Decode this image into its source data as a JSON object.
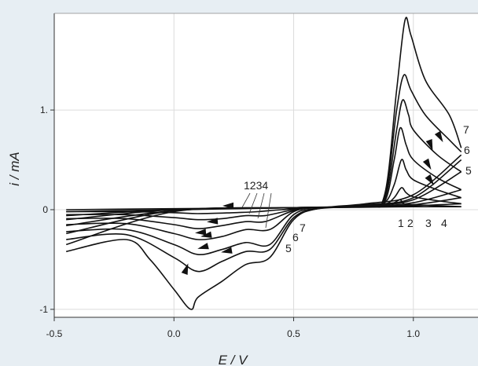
{
  "chart_data": {
    "type": "line",
    "title": "",
    "xlabel": "E / V",
    "ylabel": "i / mA",
    "xlim": [
      -0.5,
      1.27
    ],
    "ylim": [
      -1.08,
      1.97
    ],
    "grid": true,
    "x_ticks": [
      -0.5,
      0.0,
      0.5,
      1.0
    ],
    "x_tick_labels": [
      "-0.5",
      "0.0",
      "0.5",
      "1.0"
    ],
    "y_ticks": [
      -1,
      0,
      1
    ],
    "y_tick_labels": [
      "-1",
      "0",
      "1."
    ],
    "series": [
      {
        "name": "1",
        "anodic": [
          [
            -0.45,
            0.0
          ],
          [
            0.0,
            0.01
          ],
          [
            0.5,
            0.02
          ],
          [
            0.8,
            0.03
          ],
          [
            0.88,
            0.04
          ],
          [
            0.92,
            0.07
          ],
          [
            0.945,
            0.1
          ],
          [
            0.96,
            0.06
          ],
          [
            1.0,
            0.05
          ],
          [
            1.1,
            0.04
          ],
          [
            1.2,
            0.03
          ]
        ],
        "cathodic": [
          [
            1.2,
            0.03
          ],
          [
            1.0,
            0.03
          ],
          [
            0.8,
            0.025
          ],
          [
            0.6,
            0.02
          ],
          [
            0.45,
            0.0
          ],
          [
            0.35,
            -0.02
          ],
          [
            0.25,
            -0.03
          ],
          [
            0.1,
            -0.04
          ],
          [
            0.0,
            -0.03
          ],
          [
            -0.2,
            -0.02
          ],
          [
            -0.45,
            -0.02
          ]
        ]
      },
      {
        "name": "2",
        "anodic": [
          [
            -0.45,
            -0.02
          ],
          [
            0.0,
            0.0
          ],
          [
            0.5,
            0.02
          ],
          [
            0.8,
            0.03
          ],
          [
            0.88,
            0.05
          ],
          [
            0.92,
            0.12
          ],
          [
            0.95,
            0.22
          ],
          [
            0.97,
            0.17
          ],
          [
            1.0,
            0.13
          ],
          [
            1.1,
            0.09
          ],
          [
            1.2,
            0.06
          ]
        ],
        "cathodic": [
          [
            1.2,
            0.06
          ],
          [
            1.0,
            0.04
          ],
          [
            0.8,
            0.03
          ],
          [
            0.6,
            0.02
          ],
          [
            0.5,
            0.0
          ],
          [
            0.38,
            -0.06
          ],
          [
            0.3,
            -0.06
          ],
          [
            0.2,
            -0.09
          ],
          [
            0.1,
            -0.1
          ],
          [
            0.0,
            -0.08
          ],
          [
            -0.2,
            -0.05
          ],
          [
            -0.45,
            -0.05
          ]
        ]
      },
      {
        "name": "3",
        "anodic": [
          [
            -0.45,
            -0.06
          ],
          [
            0.0,
            0.0
          ],
          [
            0.5,
            0.02
          ],
          [
            0.8,
            0.03
          ],
          [
            0.88,
            0.07
          ],
          [
            0.92,
            0.25
          ],
          [
            0.95,
            0.5
          ],
          [
            0.97,
            0.4
          ],
          [
            1.0,
            0.3
          ],
          [
            1.1,
            0.2
          ],
          [
            1.2,
            0.12
          ]
        ],
        "cathodic": [
          [
            1.2,
            0.12
          ],
          [
            1.0,
            0.05
          ],
          [
            0.8,
            0.03
          ],
          [
            0.6,
            0.02
          ],
          [
            0.5,
            -0.01
          ],
          [
            0.38,
            -0.12
          ],
          [
            0.3,
            -0.12
          ],
          [
            0.2,
            -0.16
          ],
          [
            0.1,
            -0.19
          ],
          [
            0.0,
            -0.15
          ],
          [
            -0.2,
            -0.09
          ],
          [
            -0.45,
            -0.09
          ]
        ]
      },
      {
        "name": "4",
        "anodic": [
          [
            -0.45,
            -0.1
          ],
          [
            0.0,
            0.0
          ],
          [
            0.5,
            0.02
          ],
          [
            0.8,
            0.03
          ],
          [
            0.88,
            0.08
          ],
          [
            0.92,
            0.5
          ],
          [
            0.945,
            0.82
          ],
          [
            0.97,
            0.65
          ],
          [
            1.0,
            0.5
          ],
          [
            1.1,
            0.32
          ],
          [
            1.2,
            0.2
          ]
        ],
        "cathodic": [
          [
            1.2,
            0.2
          ],
          [
            1.0,
            0.07
          ],
          [
            0.8,
            0.03
          ],
          [
            0.6,
            0.02
          ],
          [
            0.5,
            -0.02
          ],
          [
            0.4,
            -0.2
          ],
          [
            0.3,
            -0.2
          ],
          [
            0.2,
            -0.27
          ],
          [
            0.1,
            -0.3
          ],
          [
            0.0,
            -0.24
          ],
          [
            -0.2,
            -0.14
          ],
          [
            -0.45,
            -0.15
          ]
        ]
      },
      {
        "name": "5",
        "anodic": [
          [
            -0.45,
            -0.16
          ],
          [
            0.0,
            -0.01
          ],
          [
            0.5,
            0.02
          ],
          [
            0.8,
            0.04
          ],
          [
            0.88,
            0.1
          ],
          [
            0.93,
            0.8
          ],
          [
            0.955,
            1.1
          ],
          [
            0.98,
            0.95
          ],
          [
            1.0,
            0.8
          ],
          [
            1.1,
            0.55
          ],
          [
            1.2,
            0.38
          ]
        ],
        "cathodic": [
          [
            1.2,
            0.38
          ],
          [
            1.0,
            0.1
          ],
          [
            0.8,
            0.04
          ],
          [
            0.6,
            0.01
          ],
          [
            0.5,
            -0.05
          ],
          [
            0.4,
            -0.35
          ],
          [
            0.3,
            -0.33
          ],
          [
            0.2,
            -0.4
          ],
          [
            0.1,
            -0.45
          ],
          [
            0.0,
            -0.35
          ],
          [
            -0.2,
            -0.2
          ],
          [
            -0.45,
            -0.22
          ]
        ]
      },
      {
        "name": "6",
        "anodic": [
          [
            -0.45,
            -0.24
          ],
          [
            0.0,
            -0.01
          ],
          [
            0.5,
            0.02
          ],
          [
            0.8,
            0.04
          ],
          [
            0.88,
            0.12
          ],
          [
            0.93,
            1.0
          ],
          [
            0.96,
            1.35
          ],
          [
            0.99,
            1.2
          ],
          [
            1.05,
            0.95
          ],
          [
            1.15,
            0.7
          ],
          [
            1.2,
            0.58
          ]
        ],
        "cathodic": [
          [
            1.2,
            0.5
          ],
          [
            1.0,
            0.12
          ],
          [
            0.8,
            0.05
          ],
          [
            0.6,
            0.01
          ],
          [
            0.5,
            -0.08
          ],
          [
            0.4,
            -0.4
          ],
          [
            0.3,
            -0.42
          ],
          [
            0.2,
            -0.52
          ],
          [
            0.1,
            -0.62
          ],
          [
            0.0,
            -0.48
          ],
          [
            -0.2,
            -0.25
          ],
          [
            -0.45,
            -0.3
          ]
        ]
      },
      {
        "name": "7",
        "anodic": [
          [
            -0.45,
            -0.35
          ],
          [
            0.0,
            -0.02
          ],
          [
            0.5,
            0.02
          ],
          [
            0.8,
            0.04
          ],
          [
            0.88,
            0.15
          ],
          [
            0.93,
            1.2
          ],
          [
            0.965,
            1.9
          ],
          [
            0.99,
            1.75
          ],
          [
            1.05,
            1.3
          ],
          [
            1.15,
            0.95
          ],
          [
            1.2,
            0.62
          ]
        ],
        "cathodic": [
          [
            1.2,
            0.55
          ],
          [
            1.0,
            0.15
          ],
          [
            0.8,
            0.06
          ],
          [
            0.6,
            0.01
          ],
          [
            0.5,
            -0.1
          ],
          [
            0.4,
            -0.48
          ],
          [
            0.3,
            -0.55
          ],
          [
            0.2,
            -0.72
          ],
          [
            0.1,
            -0.88
          ],
          [
            0.07,
            -1.0
          ],
          [
            0.0,
            -0.8
          ],
          [
            -0.1,
            -0.5
          ],
          [
            -0.2,
            -0.3
          ],
          [
            -0.45,
            -0.42
          ]
        ]
      }
    ],
    "annotations": {
      "left_group": "1234",
      "left_labels": [
        "5",
        "6",
        "7"
      ],
      "right_bottom_labels": [
        "1",
        "2",
        "3",
        "4"
      ],
      "right_side_labels": [
        "5",
        "6",
        "7"
      ]
    }
  }
}
